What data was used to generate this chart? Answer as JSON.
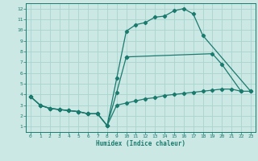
{
  "title": "",
  "xlabel": "Humidex (Indice chaleur)",
  "bg_color": "#cce8e4",
  "grid_color": "#aad4cf",
  "line_color": "#1a7a6e",
  "xlim": [
    -0.5,
    23.5
  ],
  "ylim": [
    0.5,
    12.5
  ],
  "xticks": [
    0,
    1,
    2,
    3,
    4,
    5,
    6,
    7,
    8,
    9,
    10,
    11,
    12,
    13,
    14,
    15,
    16,
    17,
    18,
    19,
    20,
    21,
    22,
    23
  ],
  "yticks": [
    1,
    2,
    3,
    4,
    5,
    6,
    7,
    8,
    9,
    10,
    11,
    12
  ],
  "curve_top_x": [
    0,
    1,
    2,
    3,
    4,
    5,
    6,
    7,
    8,
    9,
    10,
    11,
    12,
    13,
    14,
    15,
    16,
    17,
    18,
    23
  ],
  "curve_top_y": [
    3.8,
    3.0,
    2.7,
    2.6,
    2.5,
    2.4,
    2.2,
    2.2,
    1.1,
    5.5,
    9.9,
    10.5,
    10.7,
    11.2,
    11.3,
    11.8,
    12.0,
    11.5,
    9.5,
    4.3
  ],
  "curve_mid_x": [
    0,
    1,
    2,
    3,
    4,
    5,
    6,
    7,
    8,
    9,
    10,
    19,
    20,
    22
  ],
  "curve_mid_y": [
    3.8,
    3.0,
    2.7,
    2.6,
    2.5,
    2.4,
    2.2,
    2.2,
    1.1,
    4.2,
    7.5,
    7.8,
    6.8,
    4.3
  ],
  "curve_bot_x": [
    0,
    1,
    2,
    3,
    4,
    5,
    6,
    7,
    8,
    9,
    10,
    11,
    12,
    13,
    14,
    15,
    16,
    17,
    18,
    19,
    20,
    21,
    22,
    23
  ],
  "curve_bot_y": [
    3.8,
    3.0,
    2.7,
    2.6,
    2.5,
    2.4,
    2.2,
    2.2,
    1.1,
    3.0,
    3.2,
    3.4,
    3.6,
    3.7,
    3.9,
    4.0,
    4.1,
    4.2,
    4.3,
    4.4,
    4.5,
    4.5,
    4.3,
    4.3
  ]
}
